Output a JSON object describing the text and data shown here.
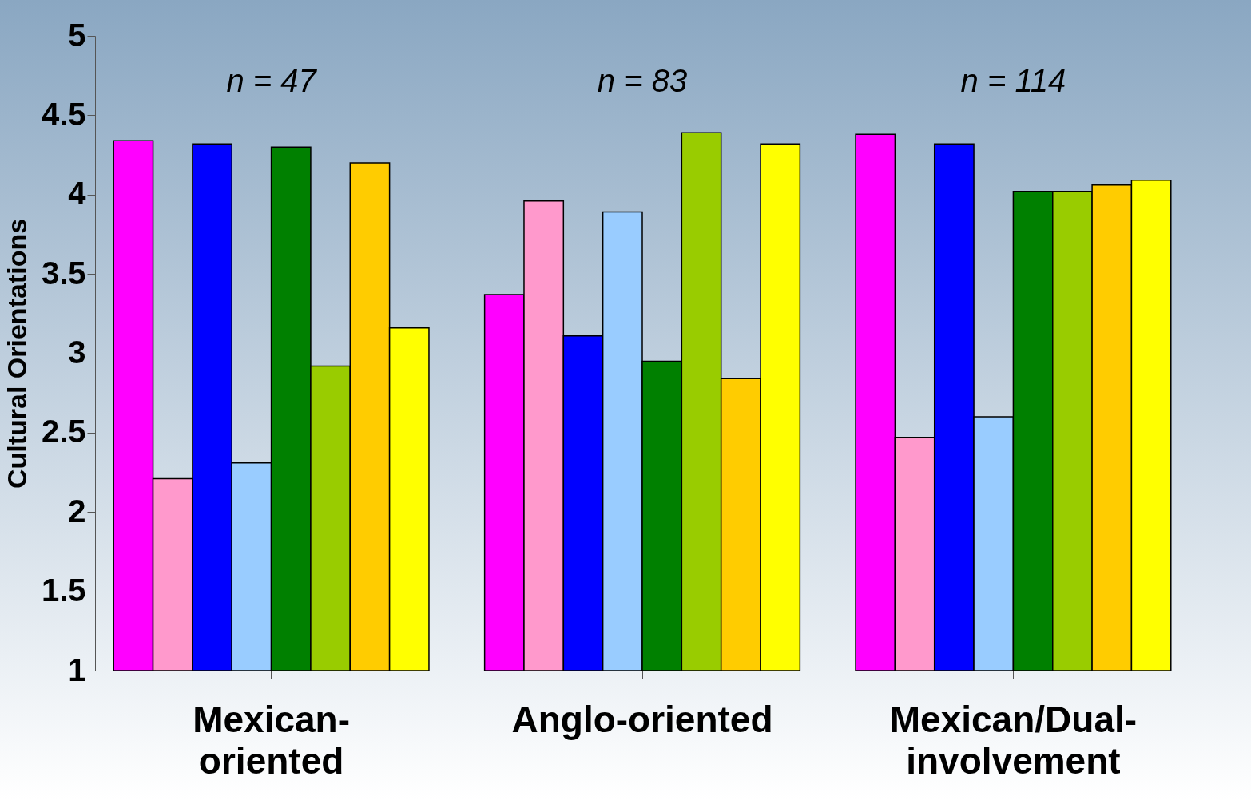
{
  "chart_data": {
    "type": "bar",
    "ylabel": "Cultural Orientations",
    "categories": [
      "Mexican-oriented",
      "Anglo-oriented",
      "Mexican/Dual-involvement"
    ],
    "series": [
      {
        "color": "#ff00ff",
        "values": [
          4.34,
          3.37,
          4.38
        ]
      },
      {
        "color": "#ff99cc",
        "values": [
          2.21,
          3.96,
          2.47
        ]
      },
      {
        "color": "#0000ff",
        "values": [
          4.32,
          3.11,
          4.32
        ]
      },
      {
        "color": "#99ccff",
        "values": [
          2.31,
          3.89,
          2.6
        ]
      },
      {
        "color": "#008000",
        "values": [
          4.3,
          2.95,
          4.02
        ]
      },
      {
        "color": "#99cc00",
        "values": [
          2.92,
          4.39,
          4.02
        ]
      },
      {
        "color": "#ffcc00",
        "values": [
          4.2,
          2.84,
          4.06
        ]
      },
      {
        "color": "#ffff00",
        "values": [
          3.16,
          4.32,
          4.09
        ]
      }
    ],
    "ylim": [
      1,
      5
    ],
    "yticks": [
      1,
      1.5,
      2,
      2.5,
      3,
      3.5,
      4,
      4.5,
      5
    ],
    "grid": false,
    "legend": false,
    "annotations": [
      "n = 47",
      "n = 83",
      "n = 114"
    ]
  }
}
